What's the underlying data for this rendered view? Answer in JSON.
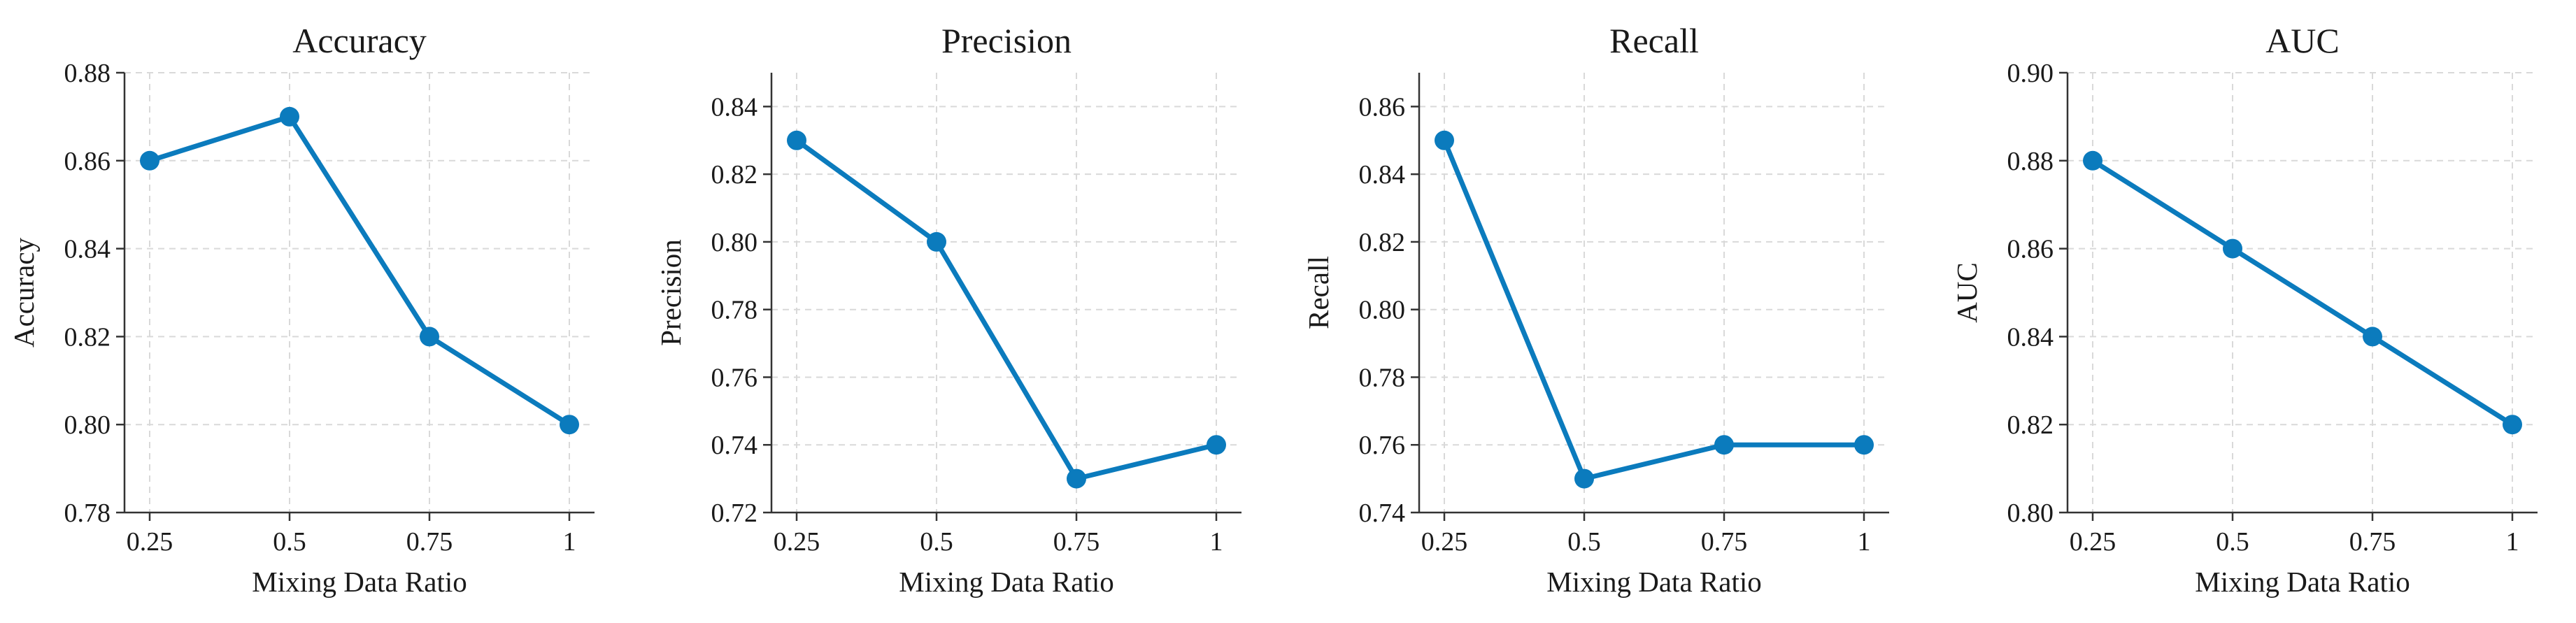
{
  "colors": {
    "series": "#0b7bbd"
  },
  "chart_data": [
    {
      "type": "line",
      "title": "Accuracy",
      "xlabel": "Mixing Data Ratio",
      "ylabel": "Accuracy",
      "categories": [
        "0.25",
        "0.5",
        "0.75",
        "1"
      ],
      "values": [
        0.86,
        0.87,
        0.82,
        0.8
      ],
      "ylim": [
        0.78,
        0.88
      ],
      "yticks": [
        "0.78",
        "0.80",
        "0.82",
        "0.84",
        "0.86",
        "0.88"
      ],
      "grid": true
    },
    {
      "type": "line",
      "title": "Precision",
      "xlabel": "Mixing Data Ratio",
      "ylabel": "Precision",
      "categories": [
        "0.25",
        "0.5",
        "0.75",
        "1"
      ],
      "values": [
        0.83,
        0.8,
        0.73,
        0.74
      ],
      "ylim": [
        0.72,
        0.85
      ],
      "yticks": [
        "0.72",
        "0.74",
        "0.76",
        "0.78",
        "0.80",
        "0.82",
        "0.84"
      ],
      "grid": true
    },
    {
      "type": "line",
      "title": "Recall",
      "xlabel": "Mixing Data Ratio",
      "ylabel": "Recall",
      "categories": [
        "0.25",
        "0.5",
        "0.75",
        "1"
      ],
      "values": [
        0.85,
        0.75,
        0.76,
        0.76
      ],
      "ylim": [
        0.74,
        0.87
      ],
      "yticks": [
        "0.74",
        "0.76",
        "0.78",
        "0.80",
        "0.82",
        "0.84",
        "0.86"
      ],
      "grid": true
    },
    {
      "type": "line",
      "title": "AUC",
      "xlabel": "Mixing Data Ratio",
      "ylabel": "AUC",
      "categories": [
        "0.25",
        "0.5",
        "0.75",
        "1"
      ],
      "values": [
        0.88,
        0.86,
        0.84,
        0.82
      ],
      "ylim": [
        0.8,
        0.9
      ],
      "yticks": [
        "0.80",
        "0.82",
        "0.84",
        "0.86",
        "0.88",
        "0.90"
      ],
      "grid": true
    }
  ]
}
